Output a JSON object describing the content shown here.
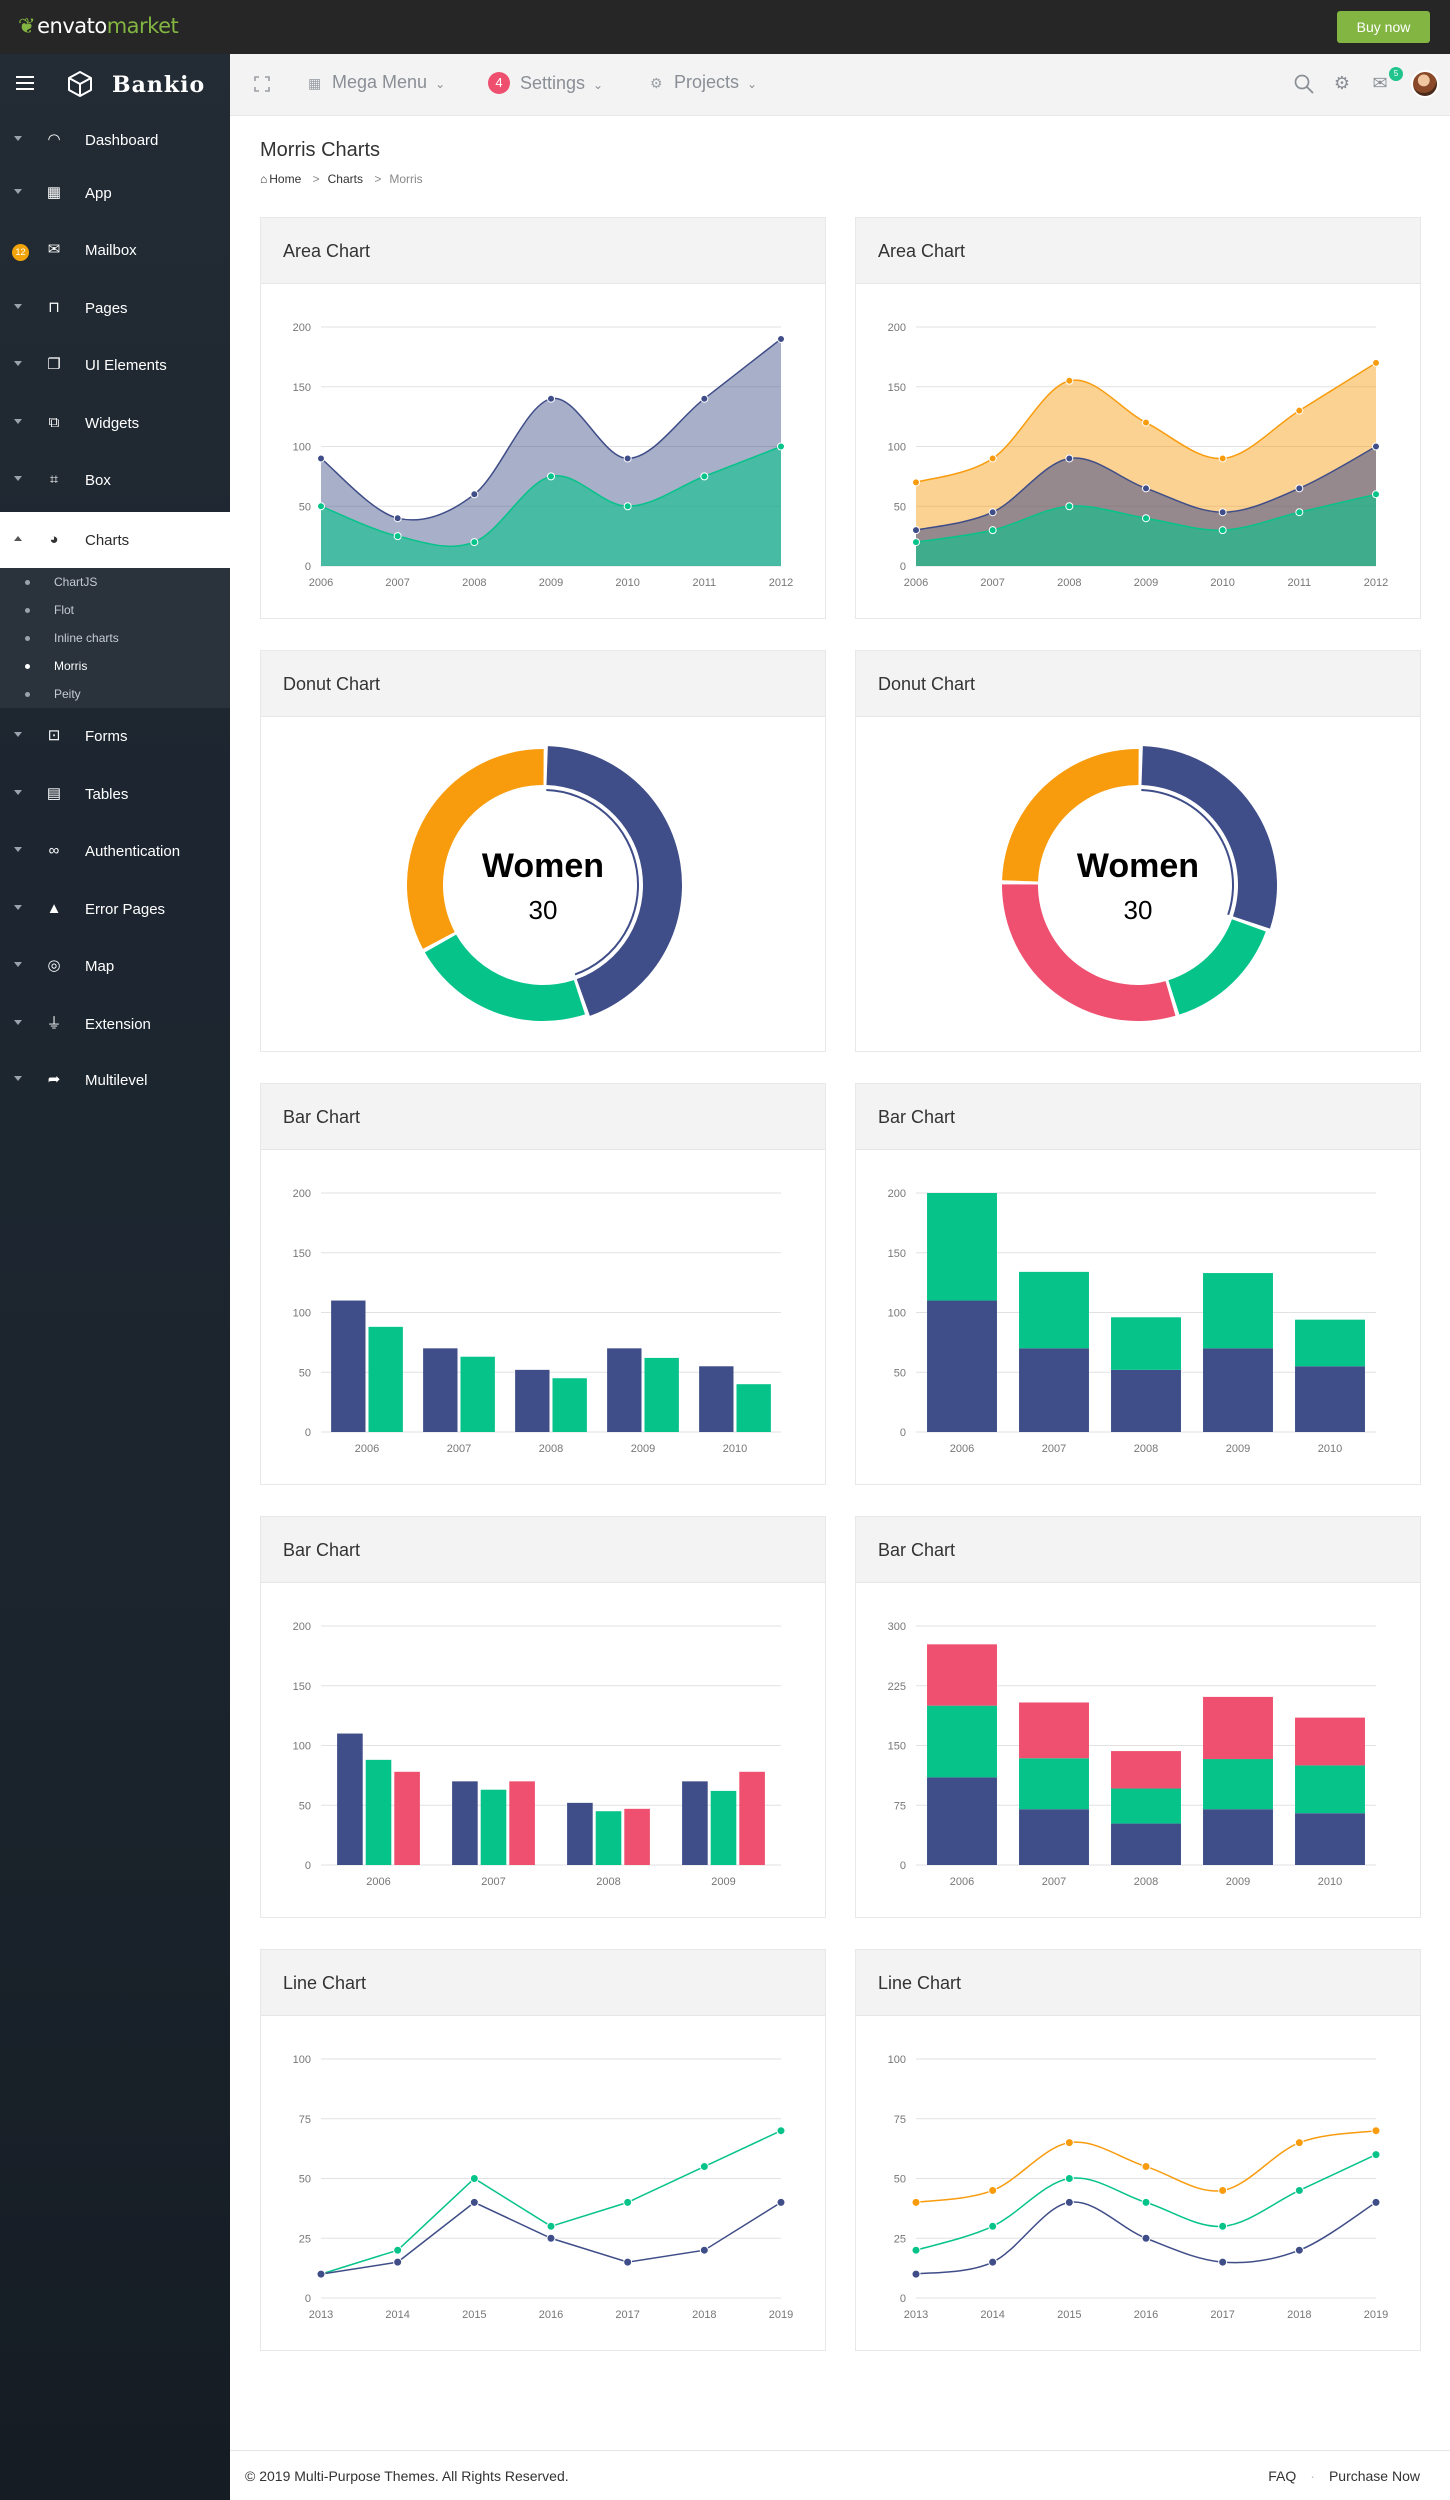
{
  "envato": {
    "logo_brand": "envato",
    "logo_suffix": "market",
    "buy_label": "Buy now",
    "accent": "#82b541"
  },
  "sidebar": {
    "brand": "Bankio",
    "items": [
      {
        "label": "Dashboard",
        "icon": "dashboard-icon"
      },
      {
        "label": "App",
        "icon": "grid-icon"
      },
      {
        "label": "Mailbox",
        "icon": "mail-icon",
        "badge": "12"
      },
      {
        "label": "Pages",
        "icon": "presentation-icon"
      },
      {
        "label": "UI Elements",
        "icon": "copy-icon"
      },
      {
        "label": "Widgets",
        "icon": "widgets-icon"
      },
      {
        "label": "Box",
        "icon": "box-icon"
      },
      {
        "label": "Charts",
        "icon": "pie-chart-icon",
        "active": true
      },
      {
        "label": "Forms",
        "icon": "form-icon"
      },
      {
        "label": "Tables",
        "icon": "table-icon"
      },
      {
        "label": "Authentication",
        "icon": "infinity-icon"
      },
      {
        "label": "Error Pages",
        "icon": "warning-icon"
      },
      {
        "label": "Map",
        "icon": "map-pin-icon"
      },
      {
        "label": "Extension",
        "icon": "plug-icon"
      },
      {
        "label": "Multilevel",
        "icon": "share-icon"
      }
    ],
    "submenu": [
      "ChartJS",
      "Flot",
      "Inline charts",
      "Morris",
      "Peity"
    ],
    "submenu_current": "Morris"
  },
  "topnav": {
    "mega_menu": "Mega Menu",
    "settings": "Settings",
    "settings_badge": "4",
    "projects": "Projects",
    "mail_count": "5"
  },
  "page": {
    "title": "Morris Charts",
    "breadcrumb": [
      "Home",
      "Charts",
      "Morris"
    ]
  },
  "colors": {
    "navy": "#3f4d88",
    "green": "#06c38a",
    "orange": "#f89c0e",
    "red": "#ef506f"
  },
  "cards": {
    "area1": "Area Chart",
    "area2": "Area Chart",
    "donut1": "Donut Chart",
    "donut2": "Donut Chart",
    "bar1": "Bar Chart",
    "bar2": "Bar Chart",
    "bar3": "Bar Chart",
    "bar4": "Bar Chart",
    "line1": "Line Chart",
    "line2": "Line Chart"
  },
  "chart_data": [
    {
      "id": "area1",
      "type": "area",
      "title": "Area Chart",
      "x": [
        "2006",
        "2007",
        "2008",
        "2009",
        "2010",
        "2011",
        "2012"
      ],
      "ylim": [
        0,
        200
      ],
      "yticks": [
        0,
        50,
        100,
        150,
        200
      ],
      "series": [
        {
          "color": "#3f4d88",
          "values": [
            90,
            40,
            60,
            140,
            90,
            140,
            190
          ]
        },
        {
          "color": "#06c38a",
          "values": [
            50,
            25,
            20,
            75,
            50,
            75,
            100
          ]
        }
      ]
    },
    {
      "id": "area2",
      "type": "area",
      "title": "Area Chart",
      "x": [
        "2006",
        "2007",
        "2008",
        "2009",
        "2010",
        "2011",
        "2012"
      ],
      "ylim": [
        0,
        200
      ],
      "yticks": [
        0,
        50,
        100,
        150,
        200
      ],
      "series": [
        {
          "color": "#f89c0e",
          "values": [
            70,
            90,
            155,
            120,
            90,
            130,
            170
          ]
        },
        {
          "color": "#3f4d88",
          "values": [
            30,
            45,
            90,
            65,
            45,
            65,
            100
          ]
        },
        {
          "color": "#06c38a",
          "values": [
            20,
            30,
            50,
            40,
            30,
            45,
            60
          ]
        }
      ]
    },
    {
      "id": "donut1",
      "type": "pie",
      "title": "Donut Chart",
      "center_label": "Women",
      "center_value": "30",
      "slices": [
        {
          "color": "#3f4d88",
          "value": 40
        },
        {
          "color": "#06c38a",
          "value": 20
        },
        {
          "color": "#f89c0e",
          "value": 30
        }
      ]
    },
    {
      "id": "donut2",
      "type": "pie",
      "title": "Donut Chart",
      "center_label": "Women",
      "center_value": "30",
      "slices": [
        {
          "color": "#3f4d88",
          "value": 30
        },
        {
          "color": "#06c38a",
          "value": 15
        },
        {
          "color": "#ef506f",
          "value": 30
        },
        {
          "color": "#f89c0e",
          "value": 25
        }
      ]
    },
    {
      "id": "bar1",
      "type": "bar",
      "title": "Bar Chart",
      "categories": [
        "2006",
        "2007",
        "2008",
        "2009",
        "2010"
      ],
      "ylim": [
        0,
        200
      ],
      "yticks": [
        0,
        50,
        100,
        150,
        200
      ],
      "series": [
        {
          "color": "#3f4d88",
          "values": [
            110,
            70,
            52,
            70,
            55
          ]
        },
        {
          "color": "#06c38a",
          "values": [
            88,
            63,
            45,
            62,
            40
          ]
        }
      ]
    },
    {
      "id": "bar2",
      "type": "bar",
      "stacked": true,
      "title": "Bar Chart",
      "categories": [
        "2006",
        "2007",
        "2008",
        "2009",
        "2010"
      ],
      "ylim": [
        0,
        200
      ],
      "yticks": [
        0,
        50,
        100,
        150,
        200
      ],
      "series": [
        {
          "color": "#3f4d88",
          "values": [
            110,
            70,
            52,
            70,
            55
          ]
        },
        {
          "color": "#06c38a",
          "values": [
            90,
            64,
            44,
            63,
            39
          ]
        }
      ]
    },
    {
      "id": "bar3",
      "type": "bar",
      "title": "Bar Chart",
      "categories": [
        "2006",
        "2007",
        "2008",
        "2009"
      ],
      "ylim": [
        0,
        200
      ],
      "yticks": [
        0,
        50,
        100,
        150,
        200
      ],
      "series": [
        {
          "color": "#3f4d88",
          "values": [
            110,
            70,
            52,
            70
          ]
        },
        {
          "color": "#06c38a",
          "values": [
            88,
            63,
            45,
            62
          ]
        },
        {
          "color": "#ef506f",
          "values": [
            78,
            70,
            47,
            78
          ]
        }
      ]
    },
    {
      "id": "bar4",
      "type": "bar",
      "stacked": true,
      "title": "Bar Chart",
      "categories": [
        "2006",
        "2007",
        "2008",
        "2009",
        "2010"
      ],
      "ylim": [
        0,
        300
      ],
      "yticks": [
        0,
        75,
        150,
        225,
        300
      ],
      "series": [
        {
          "color": "#3f4d88",
          "values": [
            110,
            70,
            52,
            70,
            65
          ]
        },
        {
          "color": "#06c38a",
          "values": [
            90,
            64,
            44,
            63,
            60
          ]
        },
        {
          "color": "#ef506f",
          "values": [
            77,
            70,
            47,
            78,
            60
          ]
        }
      ]
    },
    {
      "id": "line1",
      "type": "line",
      "title": "Line Chart",
      "x": [
        "2013",
        "2014",
        "2015",
        "2016",
        "2017",
        "2018",
        "2019"
      ],
      "ylim": [
        0,
        100
      ],
      "yticks": [
        0,
        25,
        50,
        75,
        100
      ],
      "series": [
        {
          "color": "#06c38a",
          "values": [
            10,
            20,
            50,
            30,
            40,
            55,
            70
          ]
        },
        {
          "color": "#3f4d88",
          "values": [
            10,
            15,
            40,
            25,
            15,
            20,
            40
          ]
        }
      ]
    },
    {
      "id": "line2",
      "type": "line",
      "smooth": true,
      "title": "Line Chart",
      "x": [
        "2013",
        "2014",
        "2015",
        "2016",
        "2017",
        "2018",
        "2019"
      ],
      "ylim": [
        0,
        100
      ],
      "yticks": [
        0,
        25,
        50,
        75,
        100
      ],
      "series": [
        {
          "color": "#f89c0e",
          "values": [
            40,
            45,
            65,
            55,
            45,
            65,
            70
          ]
        },
        {
          "color": "#06c38a",
          "values": [
            20,
            30,
            50,
            40,
            30,
            45,
            60
          ]
        },
        {
          "color": "#3f4d88",
          "values": [
            10,
            15,
            40,
            25,
            15,
            20,
            40
          ]
        }
      ]
    }
  ],
  "footer": {
    "copyright": "© 2019 Multi-Purpose Themes. All Rights Reserved.",
    "faq": "FAQ",
    "purchase": "Purchase Now"
  }
}
